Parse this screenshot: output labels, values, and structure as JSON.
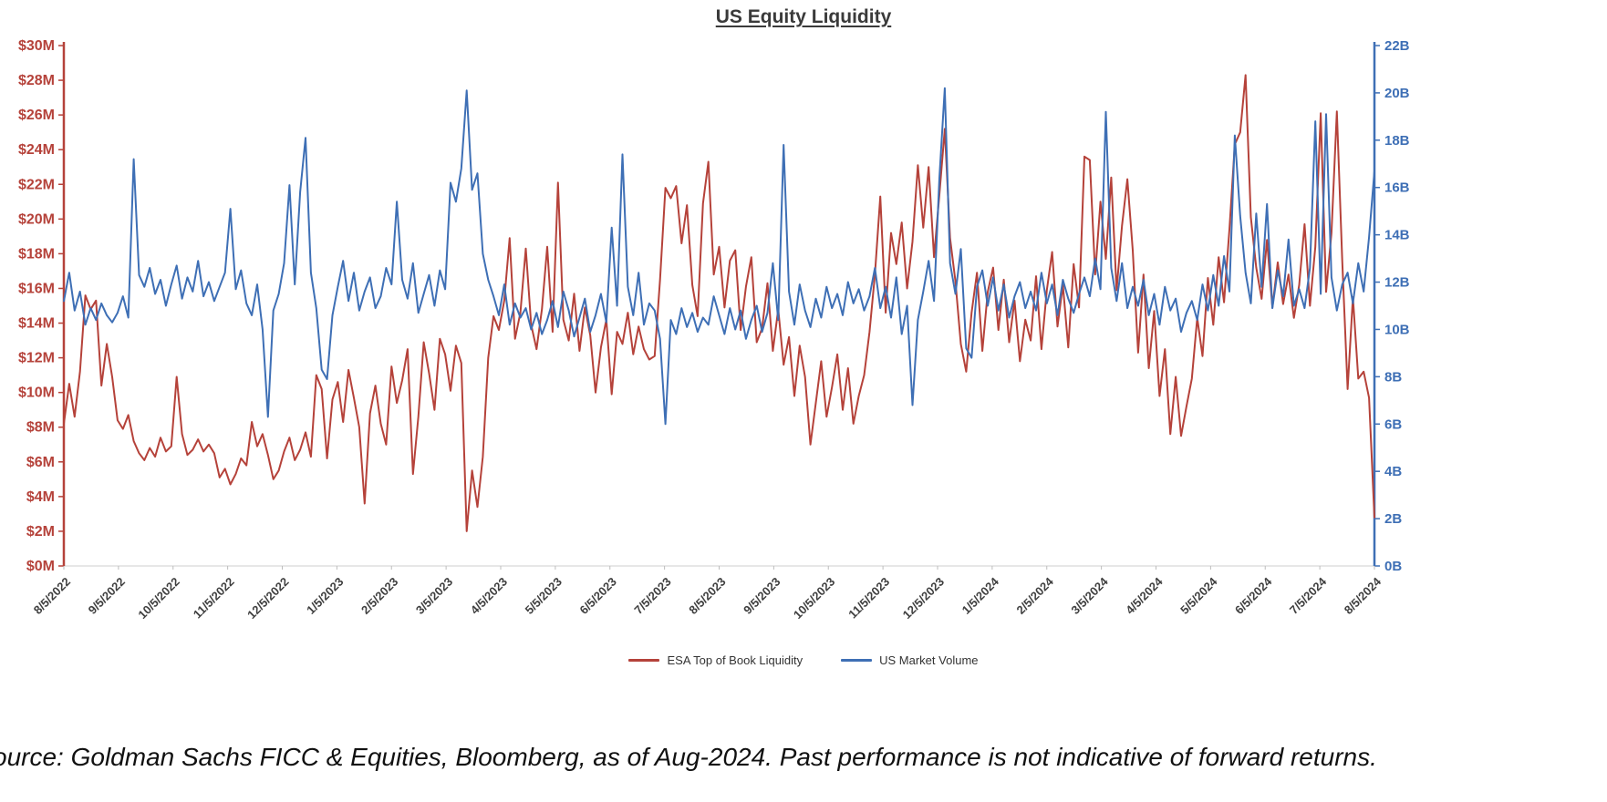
{
  "title": "US Equity Liquidity",
  "source_note": "ource: Goldman Sachs FICC & Equities, Bloomberg, as of Aug-2024.  Past performance is not indicative of forward returns.",
  "chart_data": {
    "type": "line",
    "title": "US Equity Liquidity",
    "x_tick_labels": [
      "8/5/2022",
      "9/5/2022",
      "10/5/2022",
      "11/5/2022",
      "12/5/2022",
      "1/5/2023",
      "2/5/2023",
      "3/5/2023",
      "4/5/2023",
      "5/5/2023",
      "6/5/2023",
      "7/5/2023",
      "8/5/2023",
      "9/5/2023",
      "10/5/2023",
      "11/5/2023",
      "12/5/2023",
      "1/5/2024",
      "2/5/2024",
      "3/5/2024",
      "4/5/2024",
      "5/5/2024",
      "6/5/2024",
      "7/5/2024",
      "8/5/2024"
    ],
    "left_axis": {
      "ticks": [
        "$0M",
        "$2M",
        "$4M",
        "$6M",
        "$8M",
        "$10M",
        "$12M",
        "$14M",
        "$16M",
        "$18M",
        "$20M",
        "$22M",
        "$24M",
        "$26M",
        "$28M",
        "$30M"
      ],
      "min": 0,
      "max": 30,
      "step": 2,
      "unit": "$M",
      "color": "#b5423a"
    },
    "right_axis": {
      "ticks": [
        "0B",
        "2B",
        "4B",
        "6B",
        "8B",
        "10B",
        "12B",
        "14B",
        "16B",
        "18B",
        "20B",
        "22B"
      ],
      "min": 0,
      "max": 22,
      "step": 2,
      "unit": "B",
      "color": "#3e6fb5"
    },
    "grid": false,
    "legend_position": "bottom",
    "series": [
      {
        "name": "ESA Top of Book Liquidity",
        "axis": "left",
        "color": "#b5423a",
        "values": [
          8.2,
          10.5,
          8.6,
          11.2,
          15.6,
          14.8,
          15.3,
          10.4,
          12.8,
          10.9,
          8.4,
          7.9,
          8.7,
          7.2,
          6.5,
          6.1,
          6.8,
          6.3,
          7.4,
          6.6,
          6.9,
          10.9,
          7.6,
          6.4,
          6.7,
          7.3,
          6.6,
          7.0,
          6.5,
          5.1,
          5.6,
          4.7,
          5.3,
          6.2,
          5.8,
          8.3,
          6.9,
          7.6,
          6.4,
          5.0,
          5.5,
          6.6,
          7.4,
          6.1,
          6.7,
          7.7,
          6.3,
          11.0,
          10.2,
          6.2,
          9.6,
          10.6,
          8.3,
          11.3,
          9.7,
          8.0,
          3.6,
          8.8,
          10.4,
          8.2,
          7.0,
          11.5,
          9.4,
          10.7,
          12.5,
          5.3,
          8.6,
          12.9,
          11.1,
          9.0,
          13.1,
          12.2,
          10.1,
          12.7,
          11.7,
          2.0,
          5.5,
          3.4,
          6.3,
          12.0,
          14.4,
          13.6,
          15.3,
          18.9,
          13.1,
          14.6,
          18.3,
          13.9,
          12.5,
          14.8,
          18.4,
          13.5,
          22.1,
          14.2,
          13.0,
          15.7,
          12.4,
          14.9,
          13.3,
          10.0,
          12.6,
          14.2,
          9.9,
          13.5,
          12.8,
          14.6,
          12.2,
          13.8,
          12.5,
          11.9,
          12.1,
          16.5,
          21.8,
          21.2,
          21.9,
          18.6,
          20.8,
          16.2,
          14.4,
          20.9,
          23.3,
          16.8,
          18.4,
          14.9,
          17.6,
          18.2,
          13.6,
          16.1,
          17.8,
          12.9,
          13.7,
          16.3,
          12.4,
          14.8,
          11.6,
          13.2,
          9.8,
          12.7,
          10.9,
          7.0,
          9.4,
          11.8,
          8.6,
          10.3,
          12.2,
          9.0,
          11.4,
          8.2,
          9.8,
          11.0,
          13.5,
          16.8,
          21.3,
          14.6,
          19.2,
          17.4,
          19.8,
          16.0,
          18.7,
          23.1,
          19.5,
          23.0,
          17.8,
          21.4,
          25.2,
          18.9,
          16.4,
          12.8,
          11.2,
          14.6,
          16.9,
          12.4,
          15.8,
          17.2,
          13.6,
          16.5,
          12.9,
          15.3,
          11.8,
          14.2,
          13.0,
          16.7,
          12.5,
          15.9,
          18.1,
          13.8,
          16.2,
          12.6,
          17.4,
          14.9,
          23.6,
          23.4,
          16.8,
          21.0,
          17.7,
          22.4,
          15.9,
          19.6,
          22.3,
          18.2,
          12.3,
          16.8,
          11.4,
          14.7,
          9.8,
          12.5,
          7.6,
          10.9,
          7.5,
          9.2,
          10.8,
          14.3,
          12.1,
          16.6,
          13.9,
          17.8,
          15.2,
          19.4,
          24.3,
          25.0,
          28.3,
          20.1,
          17.2,
          15.4,
          18.8,
          14.9,
          17.5,
          15.1,
          16.8,
          14.3,
          16.2,
          19.7,
          15.0,
          18.4,
          26.1,
          15.8,
          19.2,
          26.2,
          17.6,
          10.2,
          15.5,
          10.8,
          11.2,
          9.7,
          2.8
        ]
      },
      {
        "name": "US Market Volume",
        "axis": "right",
        "color": "#3e6fb5",
        "values": [
          11.2,
          12.4,
          10.8,
          11.6,
          10.2,
          10.9,
          10.4,
          11.1,
          10.6,
          10.3,
          10.7,
          11.4,
          10.5,
          17.2,
          12.3,
          11.8,
          12.6,
          11.5,
          12.1,
          11.0,
          11.9,
          12.7,
          11.3,
          12.2,
          11.6,
          12.9,
          11.4,
          12.0,
          11.2,
          11.8,
          12.4,
          15.1,
          11.7,
          12.5,
          11.1,
          10.6,
          11.9,
          10.0,
          6.3,
          10.8,
          11.5,
          12.8,
          16.1,
          11.9,
          15.8,
          18.1,
          12.4,
          10.9,
          8.3,
          7.9,
          10.6,
          11.8,
          12.9,
          11.2,
          12.4,
          10.8,
          11.6,
          12.2,
          10.9,
          11.4,
          12.6,
          11.9,
          15.4,
          12.1,
          11.3,
          12.8,
          10.7,
          11.5,
          12.3,
          11.0,
          12.5,
          11.7,
          16.2,
          15.4,
          16.8,
          20.1,
          15.9,
          16.6,
          13.2,
          12.1,
          11.4,
          10.6,
          11.9,
          10.2,
          11.1,
          10.5,
          10.9,
          10.0,
          10.7,
          9.8,
          10.4,
          11.2,
          10.1,
          11.6,
          10.8,
          9.7,
          10.5,
          11.3,
          9.9,
          10.6,
          11.5,
          10.3,
          14.3,
          11.0,
          17.4,
          11.8,
          10.6,
          12.4,
          10.2,
          11.1,
          10.8,
          9.6,
          6.0,
          10.4,
          9.8,
          10.9,
          10.1,
          10.7,
          9.9,
          10.5,
          10.2,
          11.4,
          10.6,
          9.8,
          10.9,
          10.0,
          10.8,
          9.6,
          10.4,
          11.0,
          9.9,
          10.7,
          12.8,
          10.4,
          17.8,
          11.6,
          10.2,
          11.9,
          10.8,
          10.1,
          11.3,
          10.5,
          11.8,
          10.9,
          11.5,
          10.6,
          12.0,
          11.1,
          11.7,
          10.8,
          11.4,
          12.6,
          10.9,
          11.8,
          10.5,
          12.2,
          9.8,
          11.0,
          6.8,
          10.4,
          11.6,
          12.9,
          11.2,
          16.4,
          20.2,
          12.8,
          11.5,
          13.4,
          9.2,
          8.8,
          11.8,
          12.5,
          11.0,
          12.2,
          10.8,
          11.9,
          10.5,
          11.4,
          12.0,
          10.9,
          11.6,
          10.8,
          12.4,
          11.1,
          11.9,
          10.6,
          12.1,
          11.3,
          10.7,
          11.5,
          12.2,
          11.4,
          13.0,
          11.7,
          19.2,
          12.6,
          11.2,
          12.8,
          10.9,
          11.8,
          11.0,
          12.1,
          10.6,
          11.5,
          10.2,
          11.8,
          10.8,
          11.3,
          9.9,
          10.7,
          11.2,
          10.4,
          11.9,
          10.8,
          12.3,
          11.0,
          13.1,
          11.6,
          18.2,
          14.8,
          12.4,
          11.1,
          14.9,
          11.8,
          15.3,
          10.9,
          12.5,
          11.4,
          13.8,
          11.0,
          11.7,
          10.9,
          12.6,
          18.8,
          11.5,
          19.1,
          12.2,
          10.8,
          11.9,
          12.4,
          11.1,
          12.8,
          11.6,
          13.9,
          16.7
        ]
      }
    ]
  }
}
